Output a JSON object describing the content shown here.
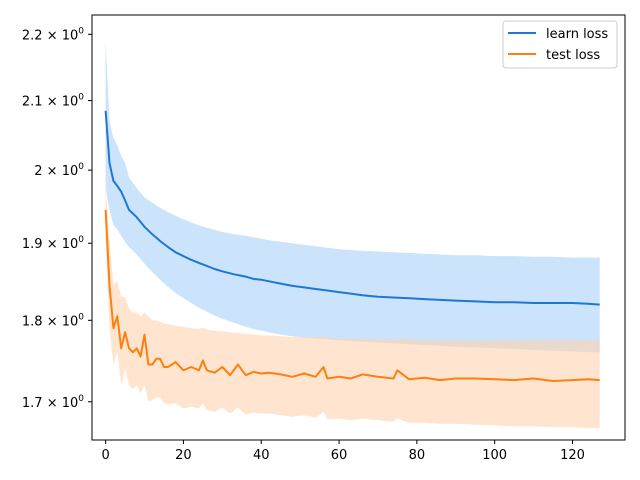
{
  "chart_data": {
    "type": "line",
    "title": "",
    "xlabel": "",
    "ylabel": "",
    "xlim": [
      -3.5,
      133.5
    ],
    "ylim": [
      1.655,
      2.23
    ],
    "yscale": "log",
    "grid": false,
    "legend_position": "top-right",
    "x_ticks": [
      0,
      20,
      40,
      60,
      80,
      100,
      120
    ],
    "y_ticks": [
      {
        "value": 1.7,
        "mantissa": "1.7",
        "base": "10",
        "exp": "0"
      },
      {
        "value": 1.8,
        "mantissa": "1.8",
        "base": "10",
        "exp": "0"
      },
      {
        "value": 1.9,
        "mantissa": "1.9",
        "base": "10",
        "exp": "0"
      },
      {
        "value": 2.0,
        "mantissa": "2",
        "base": "10",
        "exp": "0"
      },
      {
        "value": 2.1,
        "mantissa": "2.1",
        "base": "10",
        "exp": "0"
      },
      {
        "value": 2.2,
        "mantissa": "2.2",
        "base": "10",
        "exp": "0"
      }
    ],
    "times_sign": "×",
    "series": [
      {
        "name": "learn loss",
        "color": "#1f77d4",
        "band_color": "#a8d0f8",
        "x": [
          0,
          1,
          2,
          3,
          4,
          5,
          6,
          8,
          10,
          12,
          14,
          16,
          18,
          20,
          22,
          24,
          26,
          28,
          30,
          33,
          36,
          38,
          40,
          42,
          45,
          48,
          51,
          54,
          57,
          60,
          63,
          66,
          70,
          74,
          78,
          82,
          86,
          90,
          95,
          100,
          105,
          110,
          115,
          120,
          124,
          127
        ],
        "values": [
          2.085,
          2.01,
          1.985,
          1.978,
          1.97,
          1.958,
          1.945,
          1.935,
          1.922,
          1.912,
          1.903,
          1.895,
          1.888,
          1.883,
          1.878,
          1.874,
          1.87,
          1.866,
          1.863,
          1.859,
          1.856,
          1.853,
          1.852,
          1.85,
          1.847,
          1.844,
          1.842,
          1.84,
          1.838,
          1.836,
          1.834,
          1.832,
          1.83,
          1.829,
          1.828,
          1.827,
          1.826,
          1.825,
          1.824,
          1.823,
          1.823,
          1.822,
          1.822,
          1.822,
          1.821,
          1.82
        ],
        "upper": [
          2.19,
          2.07,
          2.045,
          2.035,
          2.02,
          2.01,
          1.99,
          1.975,
          1.962,
          1.955,
          1.948,
          1.942,
          1.937,
          1.932,
          1.928,
          1.924,
          1.921,
          1.918,
          1.915,
          1.912,
          1.91,
          1.908,
          1.906,
          1.904,
          1.902,
          1.9,
          1.898,
          1.896,
          1.894,
          1.892,
          1.891,
          1.89,
          1.889,
          1.888,
          1.887,
          1.886,
          1.885,
          1.884,
          1.884,
          1.883,
          1.883,
          1.882,
          1.882,
          1.881,
          1.881,
          1.881
        ],
        "lower": [
          1.975,
          1.945,
          1.925,
          1.918,
          1.91,
          1.902,
          1.895,
          1.885,
          1.873,
          1.862,
          1.852,
          1.843,
          1.835,
          1.828,
          1.822,
          1.816,
          1.811,
          1.806,
          1.802,
          1.797,
          1.792,
          1.789,
          1.787,
          1.785,
          1.782,
          1.78,
          1.778,
          1.777,
          1.776,
          1.775,
          1.774,
          1.773,
          1.772,
          1.771,
          1.77,
          1.769,
          1.768,
          1.767,
          1.766,
          1.765,
          1.764,
          1.763,
          1.762,
          1.761,
          1.76,
          1.76
        ]
      },
      {
        "name": "test loss",
        "color": "#ff7f0e",
        "band_color": "#ffd3b0",
        "x": [
          0,
          1,
          2,
          3,
          4,
          5,
          6,
          7,
          8,
          9,
          10,
          11,
          12,
          13,
          14,
          15,
          16,
          18,
          20,
          22,
          24,
          25,
          26,
          28,
          30,
          32,
          34,
          36,
          38,
          40,
          42,
          45,
          48,
          51,
          54,
          56,
          57,
          60,
          63,
          66,
          70,
          74,
          75,
          78,
          82,
          86,
          90,
          95,
          100,
          105,
          110,
          115,
          120,
          124,
          127
        ],
        "values": [
          1.945,
          1.845,
          1.79,
          1.805,
          1.765,
          1.785,
          1.765,
          1.76,
          1.765,
          1.755,
          1.782,
          1.745,
          1.745,
          1.752,
          1.752,
          1.742,
          1.742,
          1.748,
          1.738,
          1.742,
          1.738,
          1.75,
          1.738,
          1.735,
          1.742,
          1.732,
          1.745,
          1.732,
          1.736,
          1.734,
          1.735,
          1.733,
          1.73,
          1.734,
          1.73,
          1.742,
          1.728,
          1.73,
          1.728,
          1.733,
          1.73,
          1.728,
          1.738,
          1.727,
          1.729,
          1.726,
          1.728,
          1.728,
          1.727,
          1.726,
          1.728,
          1.725,
          1.726,
          1.727,
          1.726
        ],
        "upper": [
          1.975,
          1.905,
          1.845,
          1.85,
          1.83,
          1.83,
          1.815,
          1.81,
          1.81,
          1.805,
          1.81,
          1.805,
          1.8,
          1.8,
          1.798,
          1.796,
          1.795,
          1.793,
          1.792,
          1.79,
          1.789,
          1.791,
          1.788,
          1.787,
          1.786,
          1.785,
          1.784,
          1.783,
          1.782,
          1.781,
          1.781,
          1.78,
          1.779,
          1.779,
          1.778,
          1.78,
          1.778,
          1.777,
          1.777,
          1.777,
          1.776,
          1.776,
          1.777,
          1.776,
          1.775,
          1.775,
          1.775,
          1.775,
          1.775,
          1.775,
          1.775,
          1.775,
          1.775,
          1.775,
          1.775
        ],
        "lower": [
          1.905,
          1.79,
          1.745,
          1.76,
          1.72,
          1.74,
          1.72,
          1.715,
          1.72,
          1.71,
          1.72,
          1.7,
          1.702,
          1.705,
          1.705,
          1.698,
          1.697,
          1.698,
          1.692,
          1.694,
          1.692,
          1.698,
          1.69,
          1.688,
          1.693,
          1.686,
          1.693,
          1.685,
          1.687,
          1.686,
          1.686,
          1.684,
          1.682,
          1.684,
          1.681,
          1.688,
          1.679,
          1.68,
          1.678,
          1.68,
          1.678,
          1.676,
          1.68,
          1.675,
          1.675,
          1.674,
          1.674,
          1.673,
          1.672,
          1.671,
          1.671,
          1.67,
          1.67,
          1.669,
          1.669
        ]
      }
    ]
  }
}
